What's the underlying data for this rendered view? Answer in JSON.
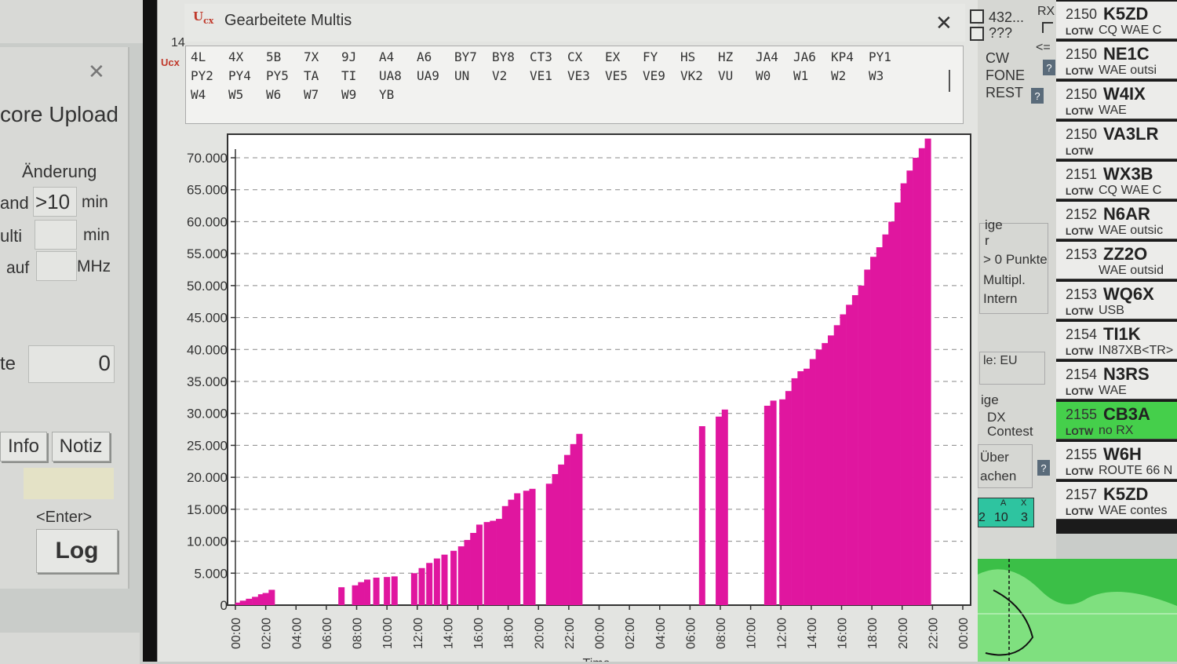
{
  "window": {
    "title": "Gearbeitete Multis",
    "side_number": "14"
  },
  "multis": [
    [
      "4L",
      "4X",
      "5B",
      "7X",
      "9J",
      "A4",
      "A6",
      "BY7",
      "BY8",
      "CT3",
      "CX",
      "EX",
      "FY",
      "HS",
      "HZ",
      "JA4",
      "JA6",
      "KP4",
      "PY1"
    ],
    [
      "PY2",
      "PY4",
      "PY5",
      "TA",
      "TI",
      "UA8",
      "UA9",
      "UN",
      "V2",
      "VE1",
      "VE3",
      "VE5",
      "VE9",
      "VK2",
      "VU",
      "W0",
      "W1",
      "W2",
      "W3"
    ],
    [
      "W4",
      "W5",
      "W6",
      "W7",
      "W9",
      "YB"
    ]
  ],
  "left_panel": {
    "title": "core Upload",
    "section": "Änderung",
    "rows": [
      {
        "label": "and",
        "value": ">10",
        "unit": "min"
      },
      {
        "label": "ulti",
        "value": "",
        "unit": "min"
      },
      {
        "label": "auf",
        "value": "",
        "unit": "MHz"
      }
    ],
    "count_label": "te",
    "count_value": "0",
    "info_button": "Info",
    "notiz_button": "Notiz",
    "enter_hint": "<Enter>",
    "log_button": "Log"
  },
  "right_mid": {
    "checkbox_1": "432...",
    "checkbox_2": "???",
    "rx_label": "RX",
    "arrow_label": "<=",
    "modes": [
      "CW",
      "FONE",
      "REST"
    ],
    "group_text": [
      "ige",
      "r",
      "> 0 Punkte",
      "Multipl.",
      "Intern"
    ],
    "continent": "le: EU",
    "contest_text": [
      "ige",
      "DX",
      "Contest"
    ],
    "uber_text": [
      "Über",
      "achen"
    ],
    "counters": {
      "headers": [
        "",
        "A",
        "X"
      ],
      "values": [
        "2",
        "10",
        "3"
      ]
    },
    "help_label": "?"
  },
  "spots": [
    {
      "time": "2150",
      "call": "K5ZD",
      "lotw": "LOTW",
      "info": "CQ WAE C"
    },
    {
      "time": "2150",
      "call": "NE1C",
      "lotw": "LOTW",
      "info": "WAE outsi"
    },
    {
      "time": "2150",
      "call": "W4IX",
      "lotw": "LOTW",
      "info": "WAE"
    },
    {
      "time": "2150",
      "call": "VA3LR",
      "lotw": "LOTW",
      "info": ""
    },
    {
      "time": "2151",
      "call": "WX3B",
      "lotw": "LOTW",
      "info": "CQ WAE C"
    },
    {
      "time": "2152",
      "call": "N6AR",
      "lotw": "LOTW",
      "info": "WAE outsic"
    },
    {
      "time": "2153",
      "call": "ZZ2O",
      "lotw": "",
      "info": "WAE outsid"
    },
    {
      "time": "2153",
      "call": "WQ6X",
      "lotw": "LOTW",
      "info": "USB"
    },
    {
      "time": "2154",
      "call": "TI1K",
      "lotw": "LOTW",
      "info": "IN87XB<TR>"
    },
    {
      "time": "2154",
      "call": "N3RS",
      "lotw": "LOTW",
      "info": "WAE"
    },
    {
      "time": "2155",
      "call": "CB3A",
      "lotw": "LOTW",
      "info": "no RX",
      "highlight": true
    },
    {
      "time": "2155",
      "call": "W6H",
      "lotw": "LOTW",
      "info": "ROUTE 66 N"
    },
    {
      "time": "2157",
      "call": "K5ZD",
      "lotw": "LOTW",
      "info": "WAE contes"
    }
  ],
  "chart_data": {
    "type": "bar",
    "color": "#e0169f",
    "ylim": [
      0,
      73000
    ],
    "yticks": [
      "0",
      "5.000",
      "10.000",
      "15.000",
      "20.000",
      "25.000",
      "30.000",
      "35.000",
      "40.000",
      "45.000",
      "50.000",
      "55.000",
      "60.000",
      "65.000",
      "70.000"
    ],
    "xticks": [
      "00:00",
      "02:00",
      "04:00",
      "06:00",
      "08:00",
      "10:00",
      "12:00",
      "14:00",
      "16:00",
      "18:00",
      "20:00",
      "22:00",
      "00:00",
      "02:00",
      "04:00",
      "06:00",
      "08:00",
      "10:00",
      "12:00",
      "14:00",
      "16:00",
      "18:00",
      "20:00",
      "22:00",
      "00:00"
    ],
    "xlim_hours": [
      0,
      48
    ],
    "xlabel": "Time",
    "bars": [
      {
        "x": 0.2,
        "y": 400
      },
      {
        "x": 0.5,
        "y": 700
      },
      {
        "x": 0.9,
        "y": 1000
      },
      {
        "x": 1.3,
        "y": 1300
      },
      {
        "x": 1.7,
        "y": 1700
      },
      {
        "x": 2.0,
        "y": 1900
      },
      {
        "x": 2.4,
        "y": 2400
      },
      {
        "x": 7.0,
        "y": 2800
      },
      {
        "x": 7.9,
        "y": 3100
      },
      {
        "x": 8.3,
        "y": 3600
      },
      {
        "x": 8.7,
        "y": 4000
      },
      {
        "x": 9.3,
        "y": 4300
      },
      {
        "x": 10.0,
        "y": 4400
      },
      {
        "x": 10.5,
        "y": 4500
      },
      {
        "x": 11.8,
        "y": 5000
      },
      {
        "x": 12.3,
        "y": 5800
      },
      {
        "x": 12.8,
        "y": 6600
      },
      {
        "x": 13.3,
        "y": 7300
      },
      {
        "x": 13.8,
        "y": 7900
      },
      {
        "x": 14.4,
        "y": 8500
      },
      {
        "x": 14.9,
        "y": 9200
      },
      {
        "x": 15.3,
        "y": 10200
      },
      {
        "x": 15.7,
        "y": 11300
      },
      {
        "x": 16.1,
        "y": 12600
      },
      {
        "x": 16.6,
        "y": 13000
      },
      {
        "x": 17.0,
        "y": 13200
      },
      {
        "x": 17.4,
        "y": 13500
      },
      {
        "x": 17.8,
        "y": 15500
      },
      {
        "x": 18.2,
        "y": 16500
      },
      {
        "x": 18.6,
        "y": 17500
      },
      {
        "x": 19.2,
        "y": 17900
      },
      {
        "x": 19.6,
        "y": 18200
      },
      {
        "x": 20.7,
        "y": 19000
      },
      {
        "x": 21.1,
        "y": 20500
      },
      {
        "x": 21.5,
        "y": 22000
      },
      {
        "x": 21.9,
        "y": 23500
      },
      {
        "x": 22.3,
        "y": 25200
      },
      {
        "x": 22.7,
        "y": 26800
      },
      {
        "x": 30.8,
        "y": 28000
      },
      {
        "x": 31.9,
        "y": 29500
      },
      {
        "x": 32.3,
        "y": 30600
      },
      {
        "x": 35.1,
        "y": 31200
      },
      {
        "x": 35.5,
        "y": 32000
      },
      {
        "x": 36.1,
        "y": 32200
      },
      {
        "x": 36.5,
        "y": 33500
      },
      {
        "x": 36.9,
        "y": 35500
      },
      {
        "x": 37.3,
        "y": 36600
      },
      {
        "x": 37.7,
        "y": 37000
      },
      {
        "x": 38.1,
        "y": 38500
      },
      {
        "x": 38.5,
        "y": 40000
      },
      {
        "x": 38.9,
        "y": 41000
      },
      {
        "x": 39.3,
        "y": 42200
      },
      {
        "x": 39.7,
        "y": 43800
      },
      {
        "x": 40.1,
        "y": 45500
      },
      {
        "x": 40.5,
        "y": 47000
      },
      {
        "x": 40.9,
        "y": 48500
      },
      {
        "x": 41.3,
        "y": 50000
      },
      {
        "x": 41.7,
        "y": 52500
      },
      {
        "x": 42.1,
        "y": 54500
      },
      {
        "x": 42.5,
        "y": 56000
      },
      {
        "x": 42.9,
        "y": 58000
      },
      {
        "x": 43.3,
        "y": 60000
      },
      {
        "x": 43.7,
        "y": 63000
      },
      {
        "x": 44.1,
        "y": 66000
      },
      {
        "x": 44.5,
        "y": 68000
      },
      {
        "x": 44.9,
        "y": 70000
      },
      {
        "x": 45.3,
        "y": 71500
      },
      {
        "x": 45.7,
        "y": 73000
      }
    ]
  }
}
